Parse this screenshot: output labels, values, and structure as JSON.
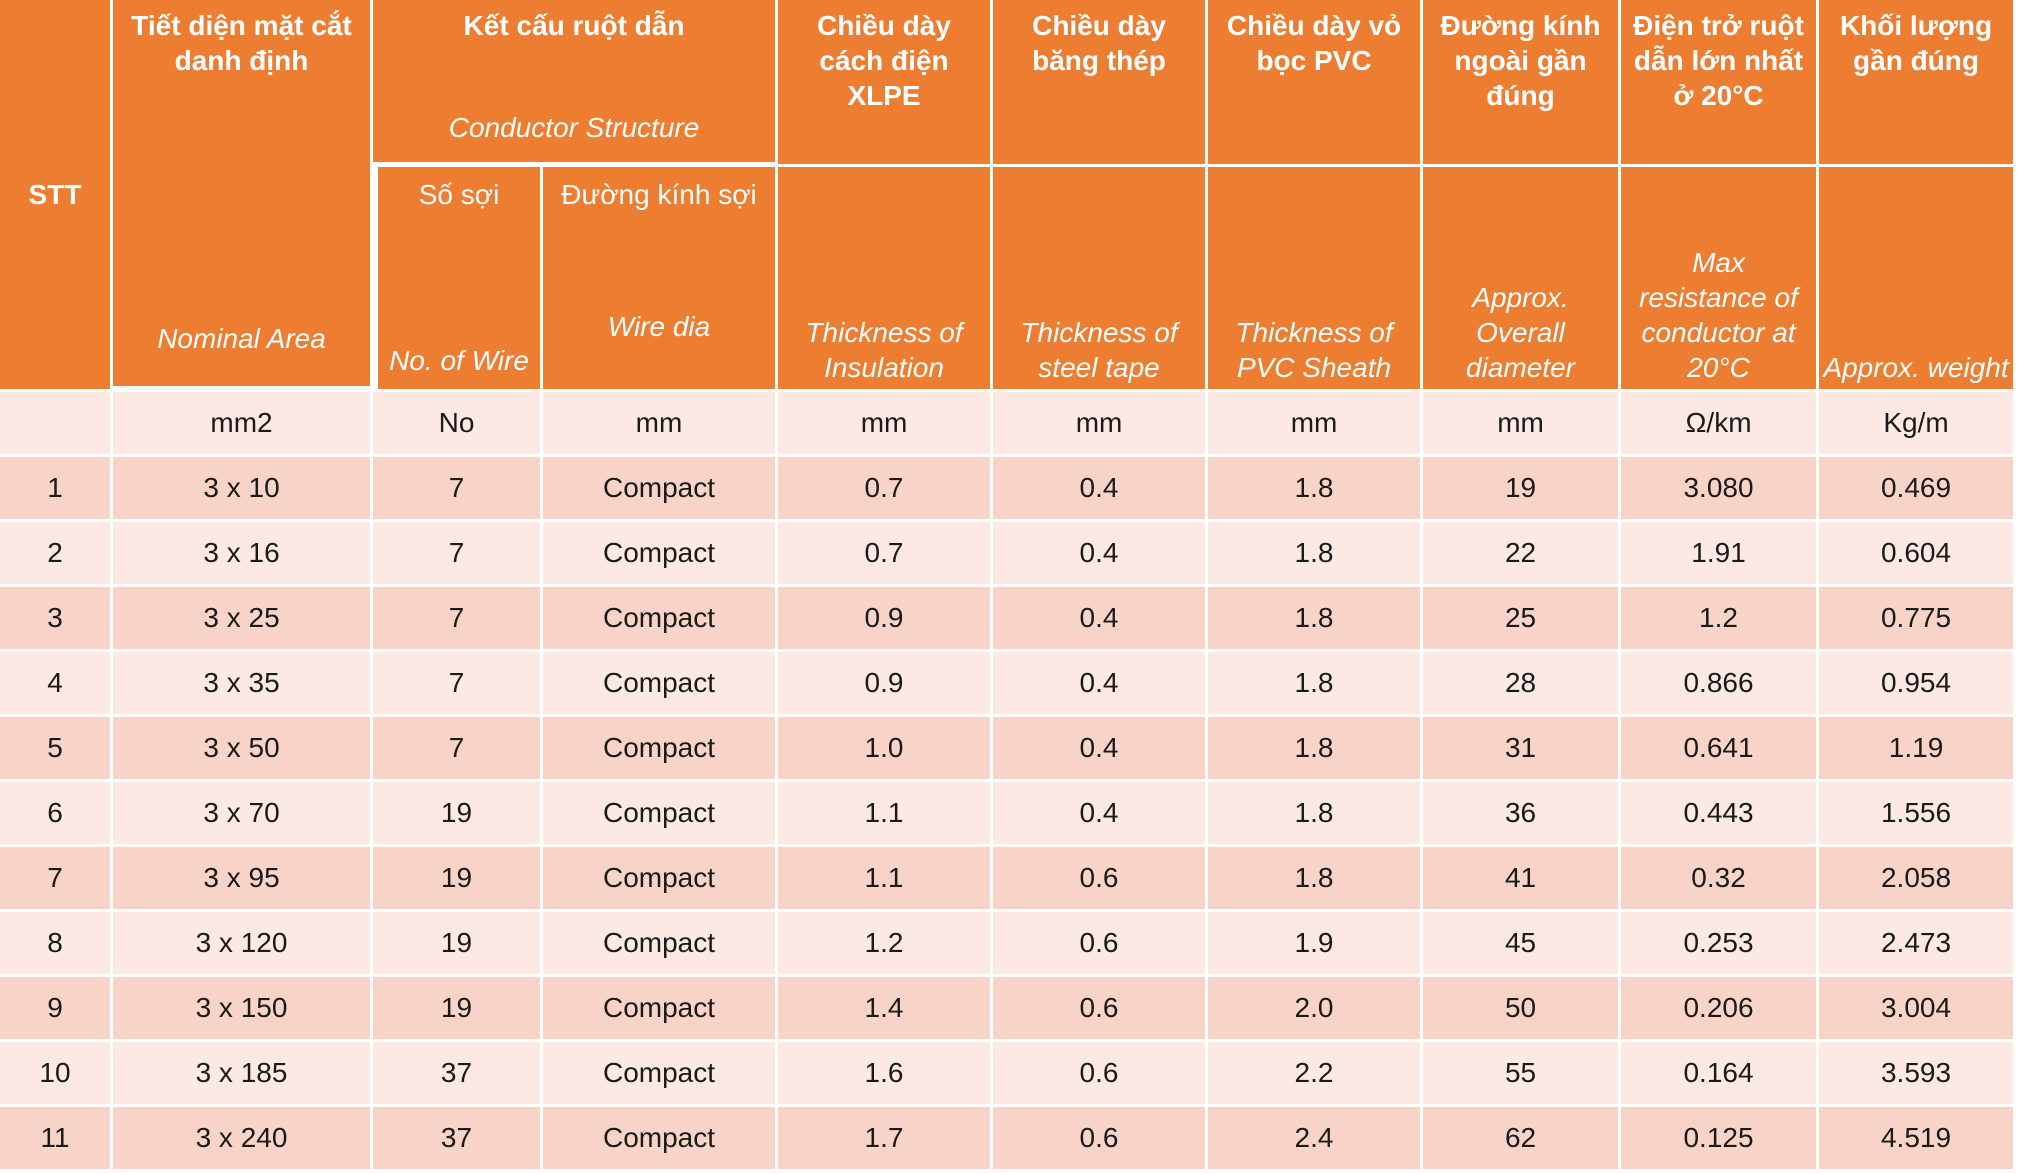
{
  "headers": {
    "stt": "STT",
    "nominal_area": {
      "vn": "Tiết diện mặt cắt danh định",
      "en": "Nominal Area"
    },
    "conductor": {
      "vn": "Kết cấu ruột dẫn",
      "en": "Conductor Structure"
    },
    "no_wire": {
      "vn": "Số sợi",
      "en": "No. of Wire"
    },
    "wire_dia": {
      "vn": "Đường kính sợi",
      "en": "Wire dia"
    },
    "insulation": {
      "vn": "Chiều dày cách điện XLPE",
      "en": "Thickness of Insulation"
    },
    "steel_tape": {
      "vn": "Chiều dày băng thép",
      "en": "Thickness of steel tape"
    },
    "pvc_sheath": {
      "vn": "Chiều dày vỏ bọc PVC",
      "en": "Thickness of PVC Sheath"
    },
    "overall_dia": {
      "vn": "Đường kính ngoài gần đúng",
      "en": "Approx. Overall diameter"
    },
    "resistance": {
      "vn": "Điện trở ruột dẫn lớn nhất ở 20°C",
      "en": "Max resistance of conductor at 20°C"
    },
    "weight": {
      "vn": "Khối lượng gần đúng",
      "en": "Approx. weight"
    }
  },
  "units": [
    "",
    "mm2",
    "No",
    "mm",
    "mm",
    "mm",
    "mm",
    "mm",
    "Ω/km",
    "Kg/m"
  ],
  "rows": [
    [
      "1",
      "3 x 10",
      "7",
      "Compact",
      "0.7",
      "0.4",
      "1.8",
      "19",
      "3.080",
      "0.469"
    ],
    [
      "2",
      "3 x 16",
      "7",
      "Compact",
      "0.7",
      "0.4",
      "1.8",
      "22",
      "1.91",
      "0.604"
    ],
    [
      "3",
      "3 x 25",
      "7",
      "Compact",
      "0.9",
      "0.4",
      "1.8",
      "25",
      "1.2",
      "0.775"
    ],
    [
      "4",
      "3 x 35",
      "7",
      "Compact",
      "0.9",
      "0.4",
      "1.8",
      "28",
      "0.866",
      "0.954"
    ],
    [
      "5",
      "3 x 50",
      "7",
      "Compact",
      "1.0",
      "0.4",
      "1.8",
      "31",
      "0.641",
      "1.19"
    ],
    [
      "6",
      "3 x 70",
      "19",
      "Compact",
      "1.1",
      "0.4",
      "1.8",
      "36",
      "0.443",
      "1.556"
    ],
    [
      "7",
      "3 x 95",
      "19",
      "Compact",
      "1.1",
      "0.6",
      "1.8",
      "41",
      "0.32",
      "2.058"
    ],
    [
      "8",
      "3 x 120",
      "19",
      "Compact",
      "1.2",
      "0.6",
      "1.9",
      "45",
      "0.253",
      "2.473"
    ],
    [
      "9",
      "3 x 150",
      "19",
      "Compact",
      "1.4",
      "0.6",
      "2.0",
      "50",
      "0.206",
      "3.004"
    ],
    [
      "10",
      "3 x 185",
      "37",
      "Compact",
      "1.6",
      "0.6",
      "2.2",
      "55",
      "0.164",
      "3.593"
    ],
    [
      "11",
      "3 x 240",
      "37",
      "Compact",
      "1.7",
      "0.6",
      "2.4",
      "62",
      "0.125",
      "4.519"
    ]
  ],
  "colors": {
    "header": "#ed7d31",
    "row_odd": "#f8d4c8",
    "row_even": "#fce9e4"
  }
}
